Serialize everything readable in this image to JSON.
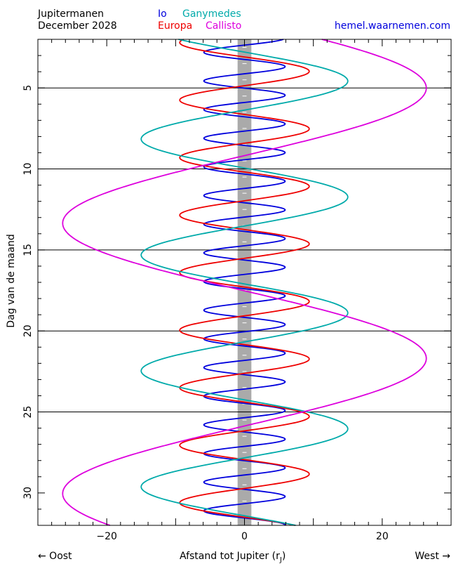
{
  "header": {
    "title": "Jupitermanen",
    "date": "December  2028",
    "site": "hemel.waarnemen.com"
  },
  "legend": [
    {
      "name": "Io",
      "color": "#0000dd"
    },
    {
      "name": "Ganymedes",
      "color": "#00aaaa"
    },
    {
      "name": "Europa",
      "color": "#ee0000"
    },
    {
      "name": "Callisto",
      "color": "#dd00dd"
    }
  ],
  "footer": {
    "left": "← Oost",
    "right": "West →",
    "xlabel_main": "Afstand tot Jupiter (r",
    "xlabel_sub": "J",
    "xlabel_end": ")"
  },
  "chart_data": {
    "type": "line",
    "title": "Jupitermanen",
    "xlabel": "Afstand tot Jupiter (rJ)",
    "ylabel": "Dag van de maand",
    "xlim": [
      -30,
      30
    ],
    "ylim": [
      2,
      32
    ],
    "y_inverted": true,
    "xticks": [
      -20,
      0,
      20
    ],
    "yticks": [
      5,
      10,
      15,
      20,
      25,
      30
    ],
    "hlines": [
      5,
      10,
      15,
      20,
      25
    ],
    "jupiter_band_halfwidth": 1,
    "series": [
      {
        "name": "Io",
        "color": "#0000dd",
        "amplitude": 5.9,
        "period_days": 1.769,
        "east_max_day": 2.8
      },
      {
        "name": "Europa",
        "color": "#ee0000",
        "amplitude": 9.4,
        "period_days": 3.551,
        "east_max_day": 2.2
      },
      {
        "name": "Ganymedes",
        "color": "#00aaaa",
        "amplitude": 15.0,
        "period_days": 7.155,
        "east_max_day": 1.0
      },
      {
        "name": "Callisto",
        "color": "#dd00dd",
        "amplitude": 26.4,
        "period_days": 16.69,
        "east_max_day": 13.35
      }
    ]
  }
}
